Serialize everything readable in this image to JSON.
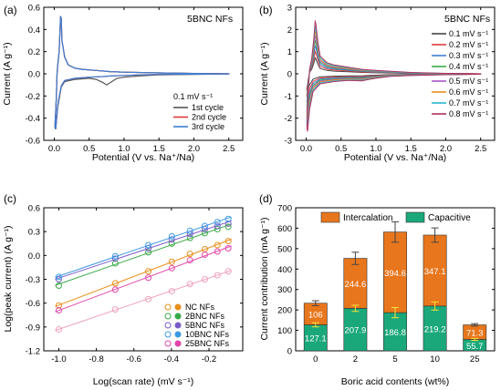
{
  "panels": [
    {
      "id": "a",
      "panel_label": "(a)",
      "tag": "5BNC NFs",
      "legend_title": "0.1 mV s⁻¹",
      "chart_data": {
        "type": "line",
        "xlabel": "Potential (V vs. Na⁺/Na)",
        "ylabel": "Current (A g⁻¹)",
        "xlim": [
          -0.15,
          2.7
        ],
        "ylim": [
          -0.6,
          0.6
        ],
        "xticks": [
          0.0,
          0.5,
          1.0,
          1.5,
          2.0,
          2.5
        ],
        "xtick_labels": [
          "0.0",
          "0.5",
          "1.0",
          "1.5",
          "2.0",
          "2.5"
        ],
        "yticks": [
          -0.6,
          -0.4,
          -0.2,
          0.0,
          0.2,
          0.4,
          0.6
        ],
        "ytick_labels": [
          "-0.6",
          "-0.4",
          "-0.2",
          "0.0",
          "0.2",
          "0.4",
          "0.6"
        ],
        "legend_position": "bottom-right",
        "series": [
          {
            "name": "1st cycle",
            "color": "#555555",
            "x": [
              0.01,
              0.02,
              0.05,
              0.1,
              0.15,
              0.3,
              0.5,
              0.6,
              0.7,
              0.75,
              0.8,
              0.9,
              1.0,
              1.2,
              1.5,
              2.0,
              2.5,
              2.5,
              2.0,
              1.5,
              1.0,
              0.8,
              0.6,
              0.4,
              0.3,
              0.2,
              0.15,
              0.11,
              0.1,
              0.09,
              0.07,
              0.05,
              0.04,
              0.03,
              0.01
            ],
            "y": [
              -0.48,
              -0.5,
              -0.3,
              -0.12,
              -0.07,
              -0.05,
              -0.04,
              -0.05,
              -0.08,
              -0.1,
              -0.08,
              -0.04,
              -0.03,
              -0.02,
              -0.01,
              -0.005,
              -0.002,
              0.0,
              0.003,
              0.008,
              0.015,
              0.02,
              0.03,
              0.04,
              0.05,
              0.08,
              0.15,
              0.3,
              0.5,
              0.52,
              0.2,
              0.08,
              0.0,
              -0.2,
              -0.48
            ]
          },
          {
            "name": "2nd cycle",
            "color": "#e0383c",
            "x": [
              0.01,
              0.02,
              0.05,
              0.1,
              0.15,
              0.3,
              0.5,
              0.7,
              0.8,
              1.0,
              1.2,
              1.5,
              2.0,
              2.5,
              2.5,
              2.0,
              1.5,
              1.0,
              0.8,
              0.6,
              0.4,
              0.3,
              0.2,
              0.15,
              0.11,
              0.1,
              0.09,
              0.07,
              0.05,
              0.04,
              0.03,
              0.01
            ],
            "y": [
              -0.48,
              -0.5,
              -0.28,
              -0.11,
              -0.06,
              -0.04,
              -0.03,
              -0.025,
              -0.02,
              -0.015,
              -0.01,
              -0.006,
              -0.003,
              -0.001,
              0.0,
              0.003,
              0.008,
              0.015,
              0.02,
              0.03,
              0.04,
              0.05,
              0.08,
              0.15,
              0.3,
              0.5,
              0.52,
              0.2,
              0.08,
              0.0,
              -0.2,
              -0.48
            ]
          },
          {
            "name": "3rd cycle",
            "color": "#3c7fd4",
            "x": [
              0.01,
              0.02,
              0.05,
              0.1,
              0.15,
              0.3,
              0.5,
              0.7,
              0.8,
              1.0,
              1.2,
              1.5,
              2.0,
              2.5,
              2.5,
              2.0,
              1.5,
              1.0,
              0.8,
              0.6,
              0.4,
              0.3,
              0.2,
              0.15,
              0.11,
              0.1,
              0.09,
              0.07,
              0.05,
              0.04,
              0.03,
              0.01
            ],
            "y": [
              -0.48,
              -0.5,
              -0.28,
              -0.11,
              -0.06,
              -0.04,
              -0.03,
              -0.025,
              -0.02,
              -0.015,
              -0.01,
              -0.006,
              -0.003,
              -0.001,
              0.0,
              0.003,
              0.008,
              0.015,
              0.02,
              0.03,
              0.04,
              0.05,
              0.08,
              0.15,
              0.3,
              0.5,
              0.52,
              0.2,
              0.08,
              0.0,
              -0.2,
              -0.48
            ]
          }
        ]
      }
    },
    {
      "id": "b",
      "panel_label": "(b)",
      "tag": "5BNC NFs",
      "chart_data": {
        "type": "line",
        "xlabel": "Potential (V vs. Na⁺/Na)",
        "ylabel": "Current (A g⁻¹)",
        "xlim": [
          -0.15,
          2.7
        ],
        "ylim": [
          -3,
          3
        ],
        "xticks": [
          0.0,
          0.5,
          1.0,
          1.5,
          2.0,
          2.5
        ],
        "xtick_labels": [
          "0.0",
          "0.5",
          "1.0",
          "1.5",
          "2.0",
          "2.5"
        ],
        "yticks": [
          -3,
          -2,
          -1,
          0,
          1,
          2,
          3
        ],
        "ytick_labels": [
          "-3",
          "-2",
          "-1",
          "0",
          "1",
          "2",
          "3"
        ],
        "legend_position": "right",
        "series": [
          {
            "name": "0.1 mV s⁻¹",
            "color": "#444444",
            "scale": 0.3
          },
          {
            "name": "0.2 mV s⁻¹",
            "color": "#e0383c",
            "scale": 0.42
          },
          {
            "name": "0.3 mV s⁻¹",
            "color": "#3c7fd4",
            "scale": 0.53
          },
          {
            "name": "0.4 mV s⁻¹",
            "color": "#3aaa4a",
            "scale": 0.63
          },
          {
            "name": "0.5 mV s⁻¹",
            "color": "#a855c8",
            "scale": 0.72
          },
          {
            "name": "0.6 mV s⁻¹",
            "color": "#e8901c",
            "scale": 0.81
          },
          {
            "name": "0.7 mV s⁻¹",
            "color": "#28b8d0",
            "scale": 0.9
          },
          {
            "name": "0.8 mV s⁻¹",
            "color": "#b03060",
            "scale": 1.0
          }
        ],
        "base_curve": {
          "x": [
            0.01,
            0.02,
            0.05,
            0.1,
            0.2,
            0.4,
            0.6,
            0.8,
            0.9,
            1.0,
            1.2,
            1.5,
            2.0,
            2.5,
            2.5,
            2.0,
            1.5,
            1.0,
            0.8,
            0.6,
            0.4,
            0.3,
            0.2,
            0.17,
            0.14,
            0.13,
            0.11,
            0.08,
            0.05,
            0.03,
            0.01
          ],
          "y": [
            -2.4,
            -2.6,
            -1.6,
            -0.8,
            -0.45,
            -0.35,
            -0.3,
            -0.32,
            -0.25,
            -0.2,
            -0.12,
            -0.08,
            -0.04,
            -0.02,
            0.0,
            0.02,
            0.06,
            0.15,
            0.2,
            0.3,
            0.4,
            0.5,
            0.8,
            1.4,
            2.2,
            2.4,
            1.6,
            0.7,
            0.2,
            -0.8,
            -2.4
          ]
        }
      }
    },
    {
      "id": "c",
      "panel_label": "(c)",
      "chart_data": {
        "type": "scatter",
        "xlabel": "Log(scan rate) (mV s⁻¹)",
        "ylabel": "Log(peak current) (A g⁻¹)",
        "xlim": [
          -1.08,
          -0.02
        ],
        "ylim": [
          -1.2,
          0.6
        ],
        "xticks": [
          -1.0,
          -0.8,
          -0.6,
          -0.4,
          -0.2
        ],
        "xtick_labels": [
          "-1.0",
          "-0.8",
          "-0.6",
          "-0.4",
          "-0.2"
        ],
        "yticks": [
          -1.2,
          -0.9,
          -0.6,
          -0.3,
          0.0,
          0.3,
          0.6
        ],
        "ytick_labels": [
          "-1.2",
          "-0.9",
          "-0.6",
          "-0.3",
          "0.0",
          "0.3",
          "0.6"
        ],
        "legend_position": "bottom-right",
        "x": [
          -1.0,
          -0.699,
          -0.523,
          -0.398,
          -0.301,
          -0.222,
          -0.155,
          -0.097
        ],
        "series": [
          {
            "name": "NC NFs",
            "color": "#e8901c",
            "y": [
              -0.63,
              -0.35,
              -0.2,
              -0.08,
              0.02,
              0.08,
              0.13,
              0.18
            ]
          },
          {
            "name": "2BNC NFs",
            "color": "#3aaa4a",
            "y": [
              -0.38,
              -0.1,
              0.04,
              0.15,
              0.22,
              0.28,
              0.33,
              0.36
            ]
          },
          {
            "name": "5BNC NFs",
            "color": "#7a5cc8",
            "y": [
              -0.3,
              -0.04,
              0.09,
              0.2,
              0.27,
              0.33,
              0.37,
              0.4
            ]
          },
          {
            "name": "10BNC NFs",
            "color": "#3c9ae0",
            "y": [
              -0.27,
              -0.01,
              0.13,
              0.24,
              0.31,
              0.37,
              0.42,
              0.46
            ]
          },
          {
            "name": "25BNC NFs",
            "color": "#e048a8",
            "y": [
              -0.69,
              -0.43,
              -0.28,
              -0.16,
              -0.06,
              0.01,
              0.05,
              0.09
            ]
          },
          {
            "name": "",
            "color": "#f0a0b8",
            "y": [
              -0.93,
              -0.68,
              -0.55,
              -0.45,
              -0.36,
              -0.3,
              -0.25,
              -0.2
            ]
          }
        ]
      }
    },
    {
      "id": "d",
      "panel_label": "(d)",
      "chart_data": {
        "type": "bar",
        "xlabel": "Boric acid contents (wt%)",
        "ylabel": "Current contribution (mA g⁻¹)",
        "categories": [
          "0",
          "2",
          "5",
          "10",
          "25"
        ],
        "ylim": [
          0,
          700
        ],
        "yticks": [
          0,
          100,
          200,
          300,
          400,
          500,
          600,
          700
        ],
        "ytick_labels": [
          "0",
          "100",
          "200",
          "300",
          "400",
          "500",
          "600",
          "700"
        ],
        "legend_position": "top",
        "series": [
          {
            "name": "Capacitive",
            "color": "#1aa87a",
            "values": [
              127.1,
              207.9,
              186.8,
              219.2,
              55.7
            ],
            "labels": [
              "127.1",
              "207.9",
              "186.8",
              "219.2",
              "55.7"
            ],
            "errors": [
              10,
              15,
              25,
              20,
              5
            ]
          },
          {
            "name": "Intercalation",
            "color": "#e8761c",
            "values": [
              106,
              244.6,
              394.6,
              347.1,
              71.3
            ],
            "labels": [
              "106",
              "244.6",
              "394.6",
              "347.1",
              "71.3"
            ],
            "errors": [
              12,
              30,
              50,
              35,
              6
            ]
          }
        ]
      }
    }
  ]
}
